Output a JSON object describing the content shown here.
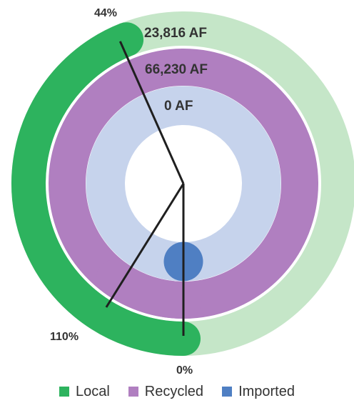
{
  "chart_data": {
    "type": "radial-progress",
    "series": [
      {
        "name": "Local",
        "value_label": "23,816 AF",
        "percent_label": "44%",
        "percent": 44,
        "color": "#2db35e",
        "track_color": "#c5e6c8"
      },
      {
        "name": "Recycled",
        "value_label": "66,230 AF",
        "percent_label": "110%",
        "percent": 110,
        "color": "#b07fc0",
        "track_color": "#b07fc0"
      },
      {
        "name": "Imported",
        "value_label": "0 AF",
        "percent_label": "0%",
        "percent": 0,
        "color": "#4f7fc3",
        "track_color": "#c6d3ec"
      }
    ],
    "legend_position": "bottom"
  }
}
